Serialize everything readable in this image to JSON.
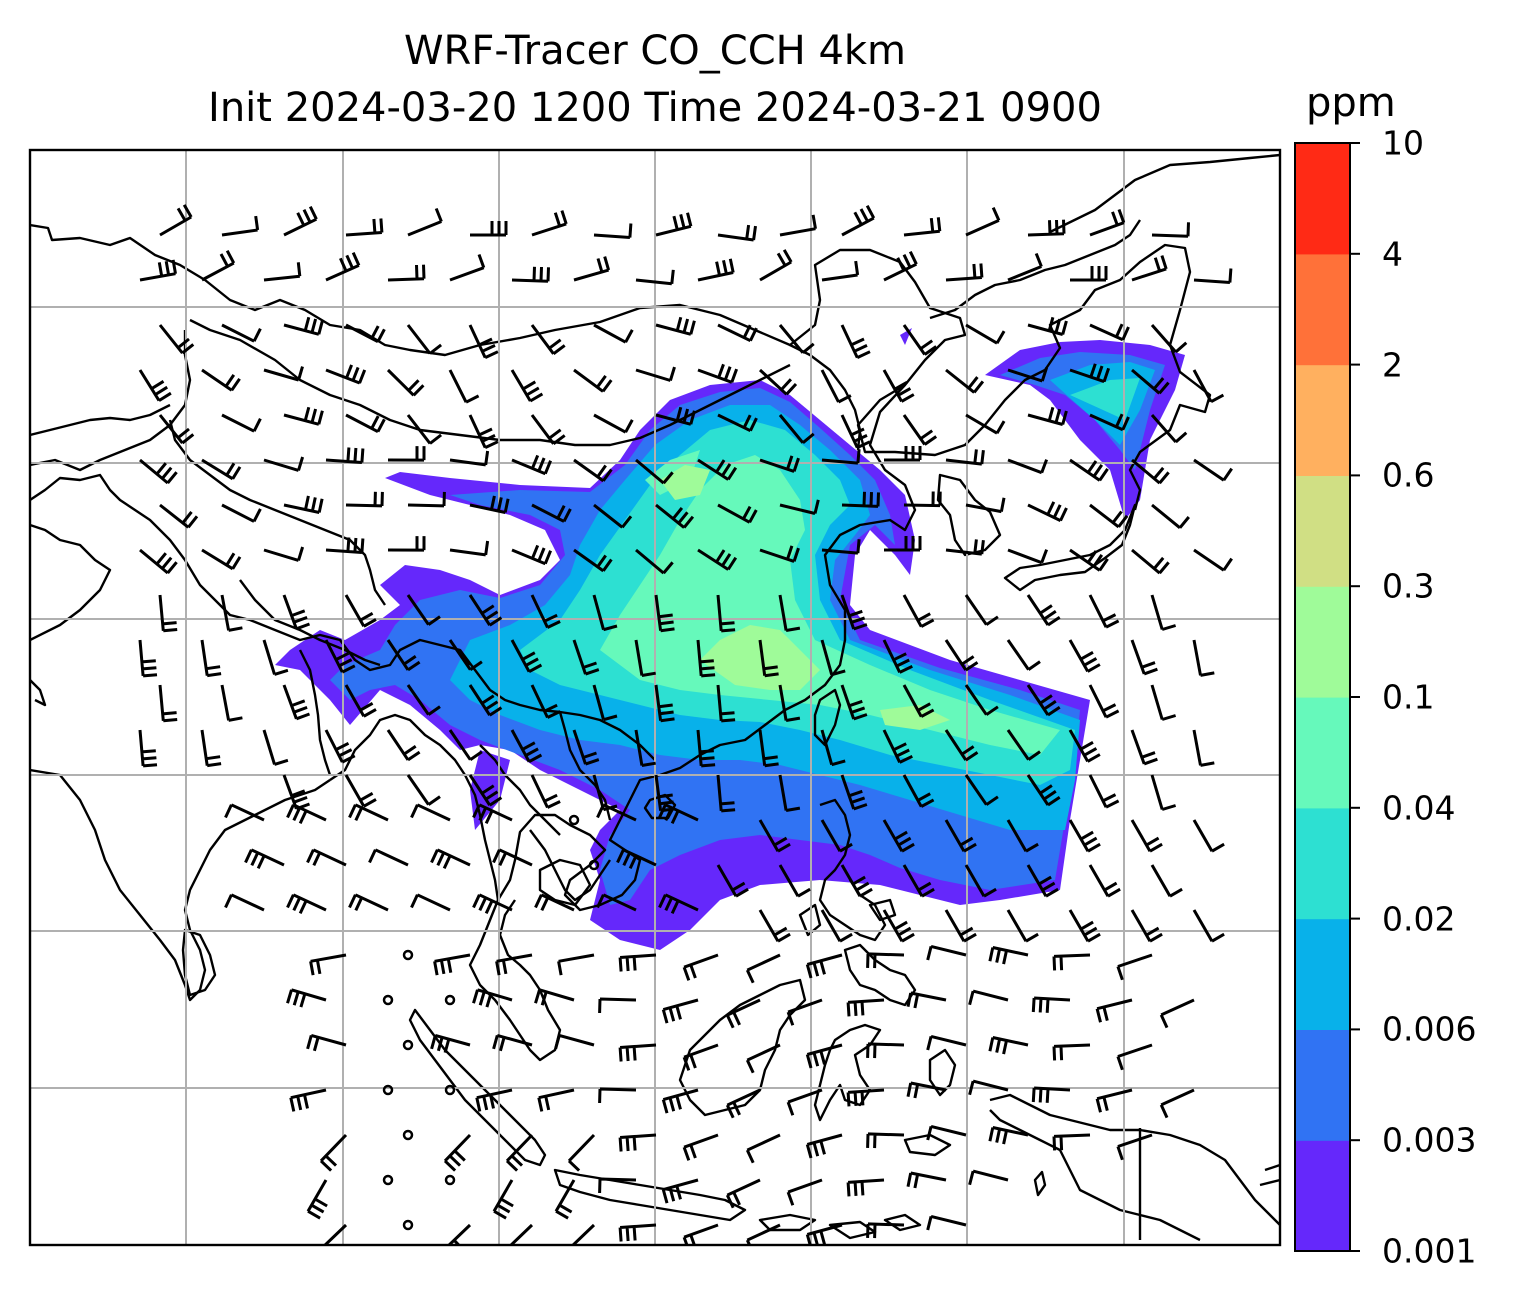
{
  "title": {
    "line1": "WRF-Tracer CO_CCH 4km",
    "line2": "Init 2024-03-20 1200 Time 2024-03-21 0900"
  },
  "colorbar": {
    "unit": "ppm",
    "ticks": [
      "0.001",
      "0.003",
      "0.006",
      "0.02",
      "0.04",
      "0.1",
      "0.3",
      "0.6",
      "2",
      "4",
      "10"
    ],
    "colors": [
      "#6528fb",
      "#3073f3",
      "#08b1ea",
      "#2de0d2",
      "#66f9bb",
      "#9ffb99",
      "#d0df84",
      "#ffb05f",
      "#ff7139",
      "#ff2a15"
    ]
  },
  "map": {
    "field_colors": {
      "lowest": "#6528fb",
      "low": "#3073f3",
      "mid": "#08b1ea",
      "midhigh": "#2de0d2",
      "high": "#66f9bb",
      "peak": "#9ffb99"
    },
    "gridline_color": "#b0b0b0",
    "coastline_color": "#000000"
  }
}
